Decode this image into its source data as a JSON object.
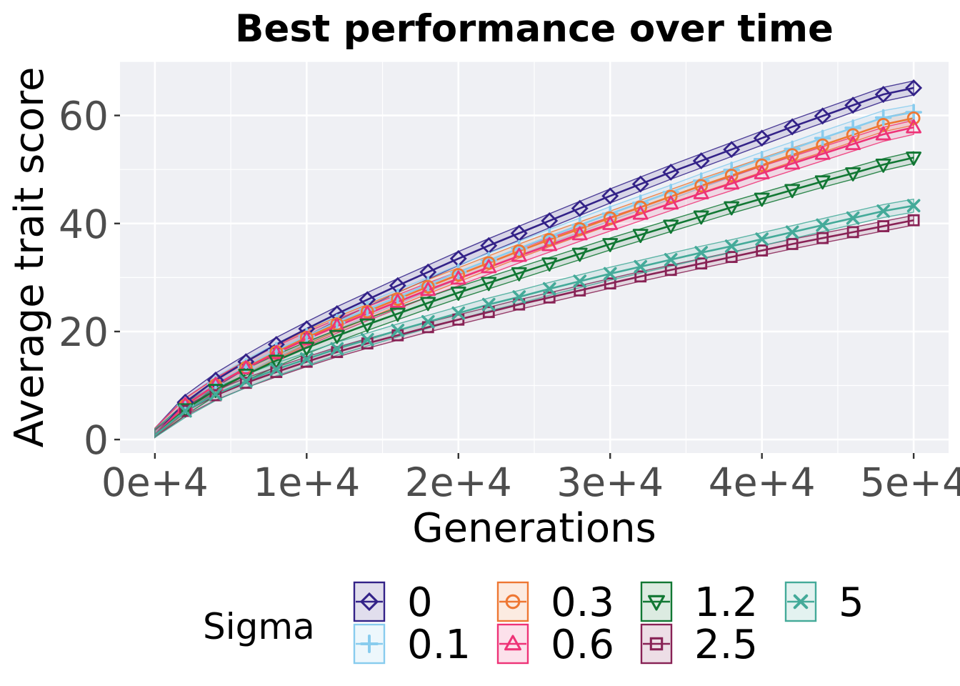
{
  "chart_data": {
    "type": "line",
    "title": "Best performance over time",
    "xlabel": "Generations",
    "ylabel": "Average trait score",
    "xlim": [
      -2300,
      52300
    ],
    "ylim": [
      -2.5,
      70
    ],
    "x_ticks": [
      {
        "value": 0,
        "label": "0e+4"
      },
      {
        "value": 10000,
        "label": "1e+4"
      },
      {
        "value": 20000,
        "label": "2e+4"
      },
      {
        "value": 30000,
        "label": "3e+4"
      },
      {
        "value": 40000,
        "label": "4e+4"
      },
      {
        "value": 50000,
        "label": "5e+4"
      }
    ],
    "y_ticks": [
      {
        "value": 0,
        "label": "0"
      },
      {
        "value": 20,
        "label": "20"
      },
      {
        "value": 40,
        "label": "40"
      },
      {
        "value": 60,
        "label": "60"
      }
    ],
    "grid": true,
    "legend": {
      "title": "Sigma",
      "position": "bottom"
    },
    "x": [
      0,
      2000,
      4000,
      6000,
      8000,
      10000,
      12000,
      14000,
      16000,
      18000,
      20000,
      22000,
      24000,
      26000,
      28000,
      30000,
      32000,
      34000,
      36000,
      38000,
      40000,
      42000,
      44000,
      46000,
      48000,
      50000
    ],
    "series": [
      {
        "name": "0",
        "color": "#332288",
        "marker": "diamond",
        "band": 1.3,
        "values": [
          0.8,
          6.9,
          11.0,
          14.4,
          17.6,
          20.5,
          23.3,
          25.9,
          28.5,
          31.0,
          33.5,
          35.9,
          38.2,
          40.5,
          42.8,
          45.1,
          47.3,
          49.5,
          51.6,
          53.7,
          55.8,
          57.9,
          59.9,
          61.9,
          63.9,
          65.1
        ]
      },
      {
        "name": "0.1",
        "color": "#88ccee",
        "marker": "plus",
        "band": 1.3,
        "values": [
          0.8,
          6.4,
          10.3,
          13.5,
          16.5,
          19.1,
          21.7,
          24.1,
          26.4,
          28.7,
          31.0,
          33.2,
          35.4,
          37.6,
          39.7,
          41.8,
          43.8,
          45.8,
          47.9,
          49.9,
          51.9,
          53.8,
          55.8,
          57.7,
          59.6,
          60.6
        ]
      },
      {
        "name": "0.3",
        "color": "#ee7733",
        "marker": "circle",
        "band": 1.3,
        "values": [
          0.8,
          6.3,
          10.1,
          13.3,
          16.2,
          18.9,
          21.4,
          23.7,
          26.0,
          28.3,
          30.5,
          32.7,
          34.9,
          37.0,
          39.0,
          41.0,
          43.0,
          45.0,
          47.0,
          48.9,
          50.8,
          52.7,
          54.5,
          56.4,
          58.3,
          59.5
        ]
      },
      {
        "name": "0.6",
        "color": "#ee3377",
        "marker": "triangle",
        "band": 1.3,
        "values": [
          0.8,
          6.4,
          10.1,
          13.2,
          16.0,
          18.6,
          21.0,
          23.3,
          25.5,
          27.7,
          29.8,
          31.9,
          34.0,
          36.0,
          38.0,
          39.9,
          41.8,
          43.7,
          45.6,
          47.4,
          49.3,
          51.1,
          52.9,
          54.7,
          56.5,
          57.8
        ]
      },
      {
        "name": "1.2",
        "color": "#117733",
        "marker": "triangle-down",
        "band": 1.1,
        "values": [
          0.8,
          5.6,
          9.2,
          12.0,
          14.6,
          17.0,
          19.2,
          21.3,
          23.3,
          25.3,
          27.2,
          29.0,
          30.8,
          32.6,
          34.4,
          36.2,
          37.9,
          39.6,
          41.3,
          43.0,
          44.6,
          46.2,
          47.8,
          49.3,
          50.9,
          52.2
        ]
      },
      {
        "name": "2.5",
        "color": "#882255",
        "marker": "square",
        "band": 0.9,
        "values": [
          0.8,
          5.3,
          8.2,
          10.5,
          12.5,
          14.4,
          16.2,
          17.8,
          19.3,
          20.8,
          22.2,
          23.6,
          25.0,
          26.3,
          27.6,
          28.9,
          30.2,
          31.4,
          32.6,
          33.8,
          35.0,
          36.2,
          37.3,
          38.4,
          39.5,
          40.6
        ]
      },
      {
        "name": "5",
        "color": "#44aa99",
        "marker": "x",
        "band": 1.2,
        "values": [
          0.8,
          5.3,
          8.4,
          10.8,
          13.0,
          14.9,
          16.8,
          18.5,
          20.2,
          21.8,
          23.4,
          25.0,
          26.4,
          27.9,
          29.3,
          30.7,
          32.0,
          33.3,
          34.6,
          35.8,
          37.1,
          38.4,
          39.7,
          41.0,
          42.3,
          43.3
        ]
      }
    ]
  }
}
